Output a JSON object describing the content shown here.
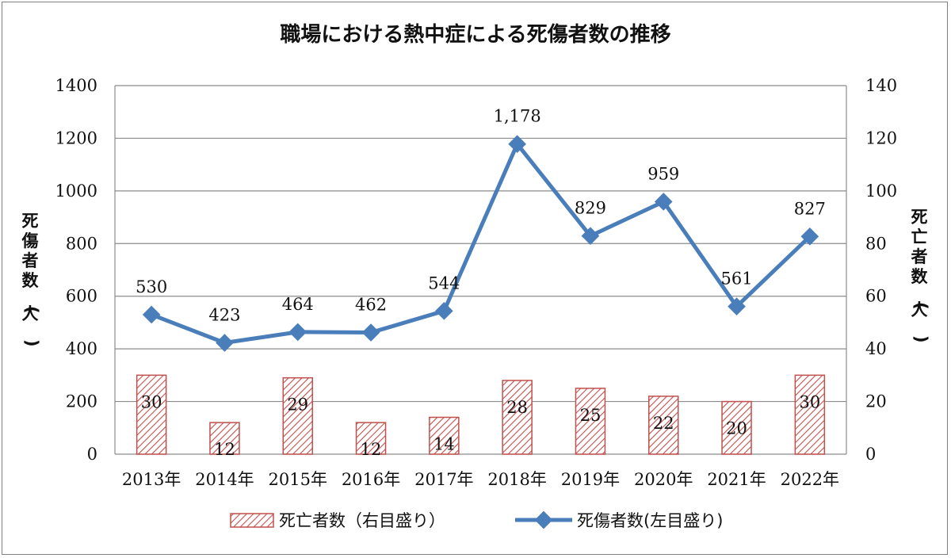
{
  "chart_data": {
    "type": "bar+line",
    "title": "職場における熱中症による死傷者数の推移",
    "categories": [
      "2013年",
      "2014年",
      "2015年",
      "2016年",
      "2017年",
      "2018年",
      "2019年",
      "2020年",
      "2021年",
      "2022年"
    ],
    "series": [
      {
        "name": "死亡者数（右目盛り）",
        "type": "bar",
        "axis": "right",
        "values": [
          30,
          12,
          29,
          12,
          14,
          28,
          25,
          22,
          20,
          30
        ],
        "labels": [
          "30",
          "12",
          "29",
          "12",
          "14",
          "28",
          "25",
          "22",
          "20",
          "30"
        ],
        "color": "#c0504d"
      },
      {
        "name": "死傷者数(左目盛り)",
        "type": "line",
        "axis": "left",
        "values": [
          530,
          423,
          464,
          462,
          544,
          1178,
          829,
          959,
          561,
          827
        ],
        "labels": [
          "530",
          "423",
          "464",
          "462",
          "544",
          "1,178",
          "829",
          "959",
          "561",
          "827"
        ],
        "color": "#4a7ebb"
      }
    ],
    "left_axis": {
      "label": "死傷者数(人)",
      "ylim": [
        0,
        1400
      ],
      "ticks": [
        "0",
        "200",
        "400",
        "600",
        "800",
        "1000",
        "1200",
        "1400"
      ]
    },
    "right_axis": {
      "label": "死亡者数(人)",
      "ylim": [
        0,
        140
      ],
      "ticks": [
        "0",
        "20",
        "40",
        "60",
        "80",
        "100",
        "120",
        "140"
      ]
    },
    "grid": true,
    "legend_position": "bottom"
  }
}
